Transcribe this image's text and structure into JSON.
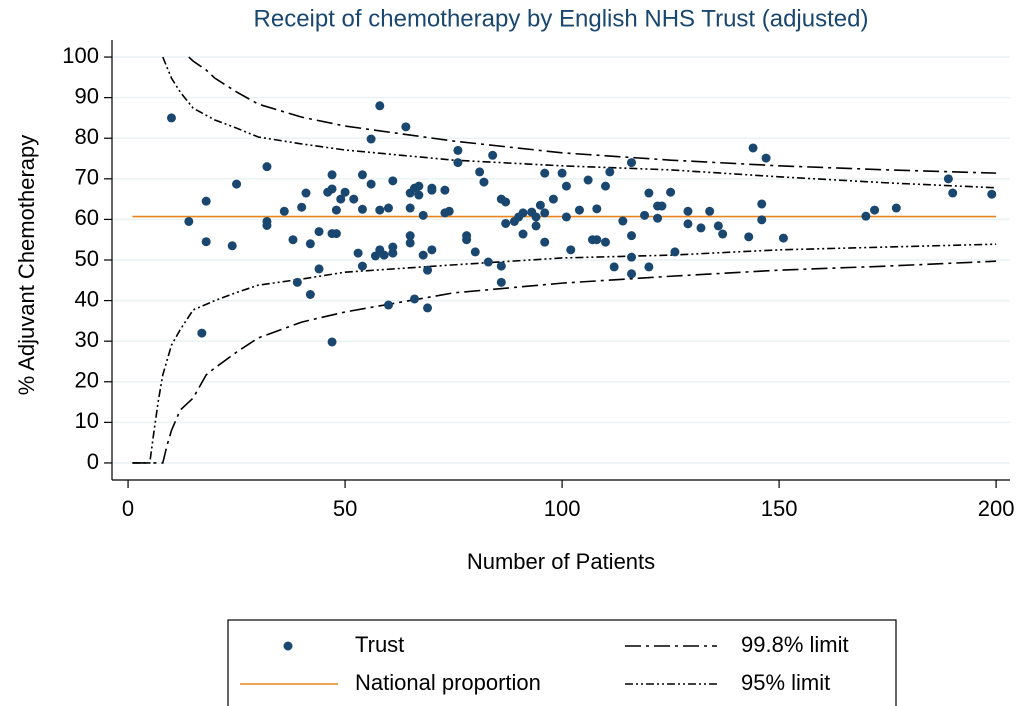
{
  "chart_data": {
    "type": "scatter",
    "title": "Receipt of chemotherapy by English NHS Trust (adjusted)",
    "x_label": "Number of Patients",
    "y_label": "% Adjuvant Chemotherapy",
    "xlim": [
      -3.7,
      203.2
    ],
    "ylim": [
      -4.2,
      104.2
    ],
    "xticks": [
      0,
      50,
      100,
      150,
      200
    ],
    "yticks": [
      0,
      10,
      20,
      30,
      40,
      50,
      60,
      70,
      80,
      90,
      100
    ],
    "grid": true,
    "legend": "bottom",
    "series": [
      {
        "name": "Trust",
        "type": "scatter",
        "color": "#1a476f",
        "x": [
          10,
          14,
          17,
          18,
          18,
          24,
          25,
          32,
          32,
          32,
          36,
          38,
          39,
          40,
          41,
          42,
          42,
          44,
          44,
          46,
          47,
          47,
          47,
          47,
          48,
          48,
          49,
          50,
          52,
          53,
          54,
          54,
          54,
          56,
          56,
          57,
          58,
          58,
          58,
          59,
          60,
          60,
          61,
          61,
          61,
          64,
          65,
          65,
          65,
          65,
          66,
          66,
          67,
          67,
          68,
          68,
          69,
          69,
          70,
          70,
          70,
          73,
          74,
          73,
          76,
          76,
          78,
          78,
          80,
          81,
          82,
          83,
          84,
          86,
          86,
          86,
          87,
          87,
          89,
          90,
          91,
          91,
          93,
          94,
          94,
          95,
          96,
          96,
          96,
          98,
          100,
          101,
          101,
          102,
          104,
          106,
          107,
          108,
          108,
          110,
          110,
          111,
          112,
          114,
          116,
          116,
          116,
          116,
          119,
          120,
          120,
          122,
          122,
          123,
          125,
          126,
          129,
          129,
          132,
          134,
          136,
          137,
          143,
          144,
          146,
          146,
          147,
          151,
          170,
          172,
          177,
          189,
          190,
          199
        ],
        "values": [
          85,
          59.5,
          32,
          64.5,
          54.5,
          53.5,
          68.7,
          73,
          59.5,
          58.5,
          62,
          55,
          44.5,
          63,
          66.5,
          41.5,
          54,
          47.8,
          57,
          66.7,
          71,
          67.5,
          29.8,
          56.5,
          56.5,
          62.3,
          65,
          66.7,
          65,
          51.7,
          71,
          62.5,
          48.5,
          68.7,
          79.8,
          51,
          88,
          52.5,
          62.3,
          51.2,
          38.9,
          62.8,
          69.5,
          53.2,
          51.7,
          82.8,
          62.8,
          54.2,
          66.5,
          56,
          40.4,
          67.7,
          68.2,
          66,
          61,
          51.2,
          38.2,
          47.5,
          52.5,
          67.7,
          67.2,
          61.6,
          62,
          67.2,
          77,
          74,
          56,
          55,
          52,
          71.7,
          69.2,
          49.5,
          75.8,
          44.5,
          48.5,
          65,
          64.3,
          59,
          59.5,
          60.6,
          56.4,
          61.6,
          61.8,
          58.4,
          60.6,
          63.5,
          54.4,
          61.6,
          71.4,
          65,
          71.4,
          68.2,
          60.6,
          52.5,
          62.3,
          69.7,
          55,
          62.6,
          55,
          54.4,
          68.2,
          71.7,
          48.3,
          59.6,
          56,
          50.7,
          46.6,
          74,
          61,
          48.3,
          66.5,
          60.3,
          63.3,
          63.3,
          66.7,
          52,
          62,
          58.9,
          57.9,
          62,
          58.4,
          56.4,
          55.7,
          77.6,
          59.9,
          63.8,
          75.1,
          55.4,
          60.8,
          62.3,
          62.8,
          70,
          66.5,
          66.2
        ]
      },
      {
        "name": "National proportion",
        "type": "line",
        "color": "#e8851e",
        "x": [
          1,
          200
        ],
        "values": [
          60.7,
          60.7
        ]
      },
      {
        "name": "99.8% limit",
        "type": "band",
        "color": "#000000",
        "dash": "16,5,3,5",
        "x": [
          1,
          8,
          9,
          10,
          12,
          14,
          15,
          18,
          20,
          25,
          30,
          40,
          50,
          75,
          100,
          125,
          150,
          175,
          200
        ],
        "values": [
          null,
          null,
          null,
          null,
          null,
          100,
          99,
          96.8,
          94.8,
          91.4,
          88.4,
          85.2,
          83,
          79.3,
          76.4,
          74.6,
          73.2,
          72.2,
          71.4
        ],
        "lower": [
          0,
          0,
          4.4,
          8,
          13,
          15,
          16,
          21.7,
          23.4,
          27.3,
          30.8,
          34.7,
          37.2,
          41.9,
          44.3,
          46,
          47.5,
          48.5,
          49.7
        ]
      },
      {
        "name": "95% limit",
        "type": "band",
        "color": "#000000",
        "dash": "8,3,2,3,2,3",
        "x": [
          1,
          5,
          6,
          7,
          8,
          10,
          12,
          15,
          20,
          25,
          30,
          40,
          50,
          75,
          100,
          125,
          150,
          175,
          200
        ],
        "values": [
          null,
          null,
          null,
          null,
          100,
          94.8,
          91.4,
          87.4,
          84.5,
          82.5,
          80.3,
          78.6,
          77.1,
          74.6,
          73.2,
          72.2,
          70.5,
          69,
          67.8
        ],
        "lower": [
          0,
          0,
          8,
          15.5,
          21.7,
          29,
          32.8,
          37.7,
          40,
          42,
          43.8,
          45.3,
          47,
          48.8,
          50.5,
          51.2,
          52.5,
          53.2,
          53.9
        ]
      }
    ]
  }
}
